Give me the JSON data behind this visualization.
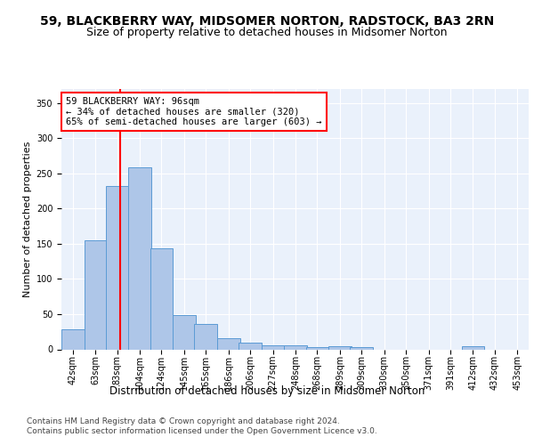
{
  "title1": "59, BLACKBERRY WAY, MIDSOMER NORTON, RADSTOCK, BA3 2RN",
  "title2": "Size of property relative to detached houses in Midsomer Norton",
  "xlabel": "Distribution of detached houses by size in Midsomer Norton",
  "ylabel": "Number of detached properties",
  "footnote1": "Contains HM Land Registry data © Crown copyright and database right 2024.",
  "footnote2": "Contains public sector information licensed under the Open Government Licence v3.0.",
  "annotation_line1": "59 BLACKBERRY WAY: 96sqm",
  "annotation_line2": "← 34% of detached houses are smaller (320)",
  "annotation_line3": "65% of semi-detached houses are larger (603) →",
  "bar_edges": [
    42,
    63,
    83,
    104,
    124,
    145,
    165,
    186,
    206,
    227,
    248,
    268,
    289,
    309,
    330,
    350,
    371,
    391,
    412,
    432,
    453
  ],
  "bar_heights": [
    28,
    155,
    232,
    259,
    144,
    49,
    36,
    16,
    9,
    6,
    6,
    3,
    5,
    3,
    0,
    0,
    0,
    0,
    5,
    0,
    0
  ],
  "bar_color": "#aec6e8",
  "bar_edge_color": "#5b9bd5",
  "vline_x": 96,
  "vline_color": "red",
  "ylim": [
    0,
    370
  ],
  "yticks": [
    0,
    50,
    100,
    150,
    200,
    250,
    300,
    350
  ],
  "bg_color": "#eaf1fb",
  "grid_color": "#ffffff",
  "title1_fontsize": 10,
  "title2_fontsize": 9,
  "xlabel_fontsize": 8.5,
  "ylabel_fontsize": 8,
  "annot_fontsize": 7.5,
  "tick_fontsize": 7,
  "footnote_fontsize": 6.5
}
